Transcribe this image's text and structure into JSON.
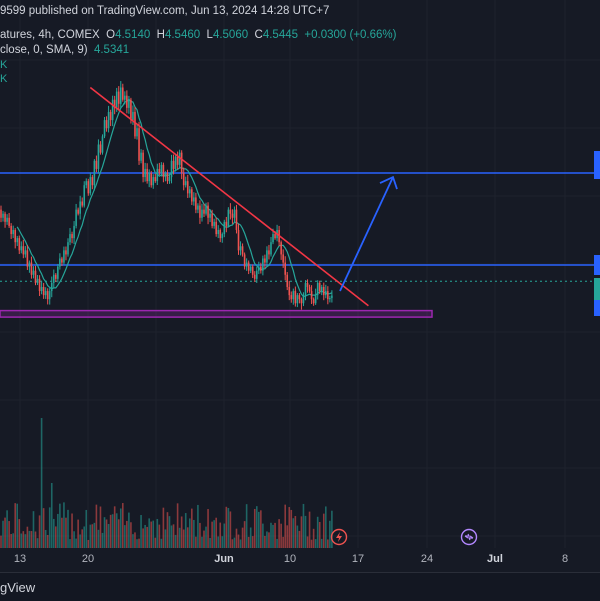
{
  "header": {
    "publish_line": "9599 published on TradingView.com, Jun 13, 2024 14:28 UTC+7",
    "symbol_line": "atures, 4h, COMEX",
    "ohlc": {
      "o_label": "O",
      "o": "4.5140",
      "h_label": "H",
      "h": "4.5460",
      "l_label": "L",
      "l": "4.5060",
      "c_label": "C",
      "c": "4.5445",
      "change": "+0.0300 (+0.66%)"
    },
    "indicator_line": "close, 0, SMA, 9)",
    "indicator_value": "4.5341",
    "k1": "K",
    "k2": "K"
  },
  "footer": {
    "brand": "gView"
  },
  "time_axis": [
    {
      "label": "13",
      "bold": false
    },
    {
      "label": "20",
      "bold": false
    },
    {
      "label": "Jun",
      "bold": true
    },
    {
      "label": "10",
      "bold": false
    },
    {
      "label": "17",
      "bold": false
    },
    {
      "label": "24",
      "bold": false
    },
    {
      "label": "Jul",
      "bold": true
    },
    {
      "label": "8",
      "bold": false
    }
  ],
  "colors": {
    "background": "#161a25",
    "up": "#26a69a",
    "down": "#ef5350",
    "sma": "#26a69a",
    "trendline": "#f23645",
    "level": "#2962ff",
    "zone": "#9c27b0",
    "arrow": "#2962ff"
  },
  "icons": [
    "lightning-dividend-icon",
    "split-event-icon"
  ],
  "chart_data": {
    "type": "candlestick",
    "title": "",
    "interval": "4h",
    "exchange": "COMEX",
    "candles": [
      [
        5.6,
        5.5
      ],
      [
        5.5,
        5.55
      ],
      [
        5.55,
        5.45
      ],
      [
        5.45,
        5.5
      ],
      [
        5.5,
        5.4
      ],
      [
        5.4,
        5.3
      ],
      [
        5.3,
        5.35
      ],
      [
        5.35,
        5.2
      ],
      [
        5.2,
        5.25
      ],
      [
        5.25,
        5.1
      ],
      [
        5.1,
        5.15
      ],
      [
        5.15,
        5.05
      ],
      [
        5.05,
        5.1
      ],
      [
        5.1,
        4.9
      ],
      [
        4.9,
        4.95
      ],
      [
        4.95,
        4.8
      ],
      [
        4.8,
        4.85
      ],
      [
        4.85,
        4.7
      ],
      [
        4.7,
        4.75
      ],
      [
        4.75,
        4.6
      ],
      [
        4.6,
        4.65
      ],
      [
        4.65,
        4.55
      ],
      [
        4.55,
        4.6
      ],
      [
        4.6,
        4.5
      ],
      [
        4.5,
        4.6
      ],
      [
        4.6,
        4.7
      ],
      [
        4.7,
        4.8
      ],
      [
        4.8,
        4.75
      ],
      [
        4.75,
        4.9
      ],
      [
        4.9,
        5.0
      ],
      [
        5.0,
        4.95
      ],
      [
        4.95,
        5.1
      ],
      [
        5.1,
        5.05
      ],
      [
        5.05,
        5.2
      ],
      [
        5.2,
        5.3
      ],
      [
        5.3,
        5.25
      ],
      [
        5.25,
        5.4
      ],
      [
        5.4,
        5.6
      ],
      [
        5.6,
        5.55
      ],
      [
        5.55,
        5.7
      ],
      [
        5.7,
        5.65
      ],
      [
        5.65,
        5.9
      ],
      [
        5.9,
        5.95
      ],
      [
        5.95,
        5.8
      ],
      [
        5.8,
        6.0
      ],
      [
        6.0,
        5.9
      ],
      [
        5.9,
        6.2
      ],
      [
        6.2,
        6.1
      ],
      [
        6.1,
        6.4
      ],
      [
        6.4,
        6.3
      ],
      [
        6.3,
        6.5
      ],
      [
        6.5,
        6.7
      ],
      [
        6.7,
        6.6
      ],
      [
        6.6,
        6.8
      ],
      [
        6.8,
        6.7
      ],
      [
        6.7,
        6.95
      ],
      [
        6.95,
        6.85
      ],
      [
        6.85,
        7.05
      ],
      [
        7.05,
        6.9
      ],
      [
        6.9,
        7.1
      ],
      [
        7.1,
        6.95
      ],
      [
        6.95,
        7.0
      ],
      [
        7.0,
        6.85
      ],
      [
        6.85,
        6.95
      ],
      [
        6.95,
        6.7
      ],
      [
        6.7,
        6.8
      ],
      [
        6.8,
        6.5
      ],
      [
        6.5,
        6.6
      ],
      [
        6.6,
        6.2
      ],
      [
        6.2,
        6.3
      ],
      [
        6.3,
        6.0
      ],
      [
        6.0,
        6.1
      ],
      [
        6.1,
        5.95
      ],
      [
        5.95,
        6.05
      ],
      [
        6.05,
        5.9
      ],
      [
        5.9,
        6.0
      ],
      [
        6.0,
        5.95
      ],
      [
        5.95,
        6.1
      ],
      [
        6.1,
        6.05
      ],
      [
        6.05,
        6.15
      ],
      [
        6.15,
        6.0
      ],
      [
        6.0,
        6.05
      ],
      [
        6.05,
        5.95
      ],
      [
        5.95,
        6.0
      ],
      [
        6.0,
        6.2
      ],
      [
        6.2,
        6.1
      ],
      [
        6.1,
        6.25
      ],
      [
        6.25,
        6.15
      ],
      [
        6.15,
        6.3
      ],
      [
        6.3,
        6.05
      ],
      [
        6.05,
        5.9
      ],
      [
        5.9,
        5.95
      ],
      [
        5.95,
        5.8
      ],
      [
        5.8,
        5.85
      ],
      [
        5.85,
        5.7
      ],
      [
        5.7,
        5.75
      ],
      [
        5.75,
        5.6
      ],
      [
        5.6,
        5.65
      ],
      [
        5.65,
        5.5
      ],
      [
        5.5,
        5.6
      ],
      [
        5.6,
        5.55
      ],
      [
        5.55,
        5.65
      ],
      [
        5.65,
        5.5
      ],
      [
        5.5,
        5.55
      ],
      [
        5.55,
        5.4
      ],
      [
        5.4,
        5.45
      ],
      [
        5.45,
        5.3
      ],
      [
        5.3,
        5.35
      ],
      [
        5.35,
        5.25
      ],
      [
        5.25,
        5.3
      ],
      [
        5.3,
        5.45
      ],
      [
        5.45,
        5.4
      ],
      [
        5.4,
        5.6
      ],
      [
        5.6,
        5.55
      ],
      [
        5.55,
        5.5
      ],
      [
        5.5,
        5.6
      ],
      [
        5.6,
        5.35
      ],
      [
        5.35,
        5.1
      ],
      [
        5.1,
        5.15
      ],
      [
        5.15,
        5.05
      ],
      [
        5.05,
        4.9
      ],
      [
        4.9,
        4.95
      ],
      [
        4.95,
        4.85
      ],
      [
        4.85,
        4.9
      ],
      [
        4.9,
        4.8
      ],
      [
        4.8,
        4.75
      ],
      [
        4.75,
        4.85
      ],
      [
        4.85,
        4.9
      ],
      [
        4.9,
        4.85
      ],
      [
        4.85,
        5.0
      ],
      [
        5.0,
        4.95
      ],
      [
        4.95,
        5.1
      ],
      [
        5.1,
        5.05
      ],
      [
        5.05,
        5.2
      ],
      [
        5.2,
        5.3
      ],
      [
        5.3,
        5.25
      ],
      [
        5.25,
        5.35
      ],
      [
        5.35,
        5.2
      ],
      [
        5.2,
        5.05
      ],
      [
        5.05,
        4.95
      ],
      [
        4.95,
        4.8
      ],
      [
        4.8,
        4.65
      ],
      [
        4.65,
        4.55
      ],
      [
        4.55,
        4.5
      ],
      [
        4.5,
        4.6
      ],
      [
        4.6,
        4.45
      ],
      [
        4.45,
        4.55
      ],
      [
        4.55,
        4.5
      ],
      [
        4.5,
        4.45
      ],
      [
        4.45,
        4.55
      ],
      [
        4.55,
        4.7
      ],
      [
        4.7,
        4.65
      ],
      [
        4.65,
        4.6
      ],
      [
        4.6,
        4.5
      ],
      [
        4.5,
        4.45
      ],
      [
        4.45,
        4.55
      ],
      [
        4.55,
        4.7
      ],
      [
        4.7,
        4.6
      ],
      [
        4.6,
        4.65
      ],
      [
        4.65,
        4.55
      ],
      [
        4.55,
        4.6
      ],
      [
        4.6,
        4.5
      ],
      [
        4.5,
        4.5145
      ],
      [
        4.514,
        4.5445
      ]
    ],
    "trendline": {
      "from_index": 46,
      "from_price": 7.1,
      "to_index": 175,
      "to_price": 4.42
    },
    "levels": [
      6.05,
      4.92
    ],
    "last_price_dotted": 4.72,
    "support_zone": {
      "from_price": 4.36,
      "to_price": 4.28
    },
    "projection_target": 6.0
  }
}
